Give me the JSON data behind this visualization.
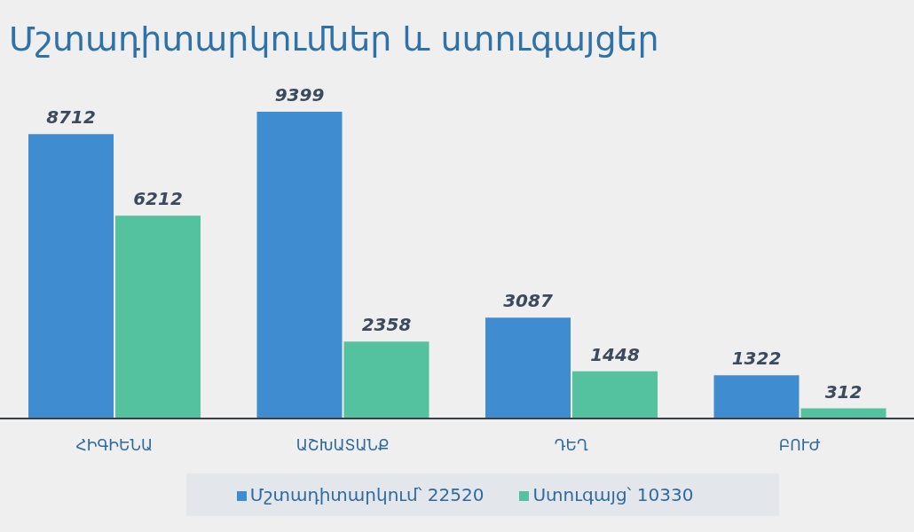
{
  "chart_data": {
    "type": "bar",
    "title": "Մշտադիտարկումներ և ստուգայցեր",
    "categories": [
      "ՀԻԳԻԵՆԱ",
      "ԱՇԽԱՏԱՆՔ",
      "ԴԵՂ",
      "ԲՈՒԺ"
    ],
    "series": [
      {
        "name": "Մշտադիտարկում՝ 22520",
        "color": "#3f8dd0",
        "values": [
          8712,
          9399,
          3087,
          1322
        ]
      },
      {
        "name": "Ստուգայց՝ 10330",
        "color": "#55c29f",
        "values": [
          6212,
          2358,
          1448,
          312
        ]
      }
    ],
    "data_labels": true,
    "legend": "bottom"
  }
}
